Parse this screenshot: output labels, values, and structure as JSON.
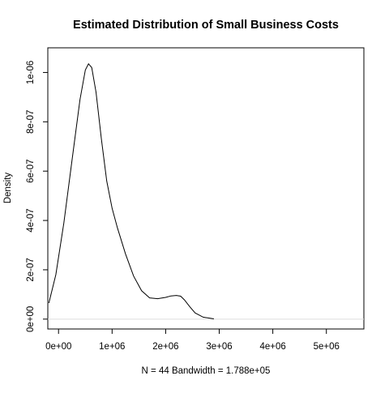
{
  "chart_data": {
    "type": "line",
    "title": "Estimated Distribution of Small Business Costs",
    "xlabel": "N = 44   Bandwidth = 1.788e+05",
    "ylabel": "Density",
    "xlim": [
      -200000,
      5700000
    ],
    "ylim": [
      -4e-08,
      1.1e-06
    ],
    "x_ticks": [
      {
        "value": 0,
        "label": "0e+00"
      },
      {
        "value": 1000000,
        "label": "1e+06"
      },
      {
        "value": 2000000,
        "label": "2e+06"
      },
      {
        "value": 3000000,
        "label": "3e+06"
      },
      {
        "value": 4000000,
        "label": "4e+06"
      },
      {
        "value": 5000000,
        "label": "5e+06"
      }
    ],
    "y_ticks": [
      {
        "value": 0,
        "label": "0e+00"
      },
      {
        "value": 2e-07,
        "label": "2e-07"
      },
      {
        "value": 4e-07,
        "label": "4e-07"
      },
      {
        "value": 6e-07,
        "label": "6e-07"
      },
      {
        "value": 8e-07,
        "label": "8e-07"
      },
      {
        "value": 1e-06,
        "label": "1e-06"
      }
    ],
    "baseline": 0,
    "grid": false,
    "series": [
      {
        "x": [
          -180000,
          -50000,
          100000,
          250000,
          400000,
          500000,
          560000,
          620000,
          700000,
          800000,
          900000,
          1000000,
          1100000,
          1250000,
          1400000,
          1550000,
          1700000,
          1850000,
          2000000,
          2100000,
          2200000,
          2280000,
          2350000,
          2450000,
          2550000,
          2700000,
          2900000
        ],
        "y": [
          6.5e-08,
          1.8e-07,
          3.9e-07,
          6.4e-07,
          8.9e-07,
          1.01e-06,
          1.035e-06,
          1.02e-06,
          9.2e-07,
          7.3e-07,
          5.6e-07,
          4.5e-07,
          3.7e-07,
          2.65e-07,
          1.75e-07,
          1.15e-07,
          8.6e-08,
          8.3e-08,
          8.8e-08,
          9.4e-08,
          9.6e-08,
          9.3e-08,
          7.8e-08,
          5e-08,
          2.5e-08,
          8e-09,
          1e-09
        ]
      }
    ]
  }
}
